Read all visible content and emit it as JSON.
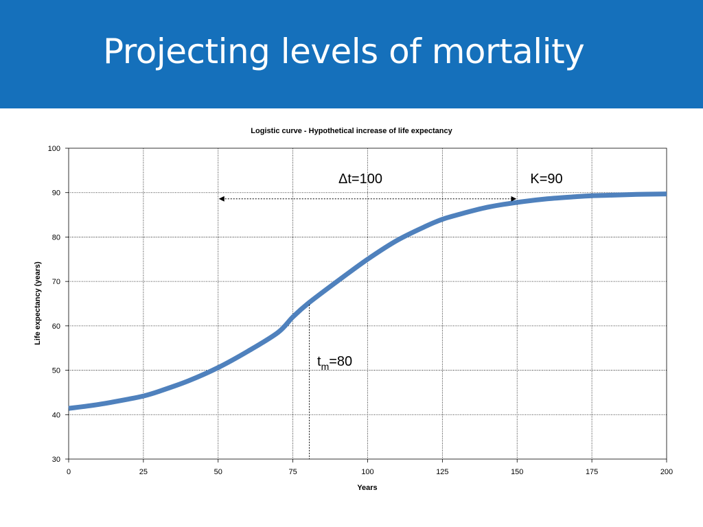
{
  "slide": {
    "title": "Projecting levels of mortality",
    "accent_color": "#1570bb"
  },
  "chart_data": {
    "type": "line",
    "title": "Logistic curve - Hypothetical increase of life expectancy",
    "xlabel": "Years",
    "ylabel": "Life expectancy (years)",
    "xlim": [
      0,
      200
    ],
    "ylim": [
      30,
      100
    ],
    "x_ticks": [
      0,
      25,
      50,
      75,
      100,
      125,
      150,
      175,
      200
    ],
    "y_ticks": [
      30,
      40,
      50,
      60,
      70,
      80,
      90,
      100
    ],
    "grid": true,
    "legend": "none",
    "series": [
      {
        "color": "#4f81bd",
        "x": [
          0,
          10,
          20,
          25,
          30,
          40,
          50,
          60,
          70,
          75,
          80,
          90,
          100,
          110,
          120,
          125,
          130,
          140,
          150,
          160,
          170,
          175,
          180,
          190,
          200
        ],
        "y": [
          41.4,
          42.3,
          43.5,
          44.2,
          45.2,
          47.6,
          50.6,
          54.3,
          58.5,
          62.0,
          65.0,
          70.1,
          75.0,
          79.3,
          82.6,
          84.0,
          85.0,
          86.7,
          87.8,
          88.6,
          89.1,
          89.3,
          89.4,
          89.6,
          89.7
        ]
      }
    ],
    "annotations": {
      "delta_t": "Δt=100",
      "k": "K=90",
      "tm_main": "t",
      "tm_sub": "m",
      "tm_value": "=80",
      "arrow_from_x": 50,
      "arrow_to_x": 150,
      "arrow_y": 88.6,
      "tm_line_x": 80.5,
      "tm_line_top_y": 64.8
    }
  }
}
